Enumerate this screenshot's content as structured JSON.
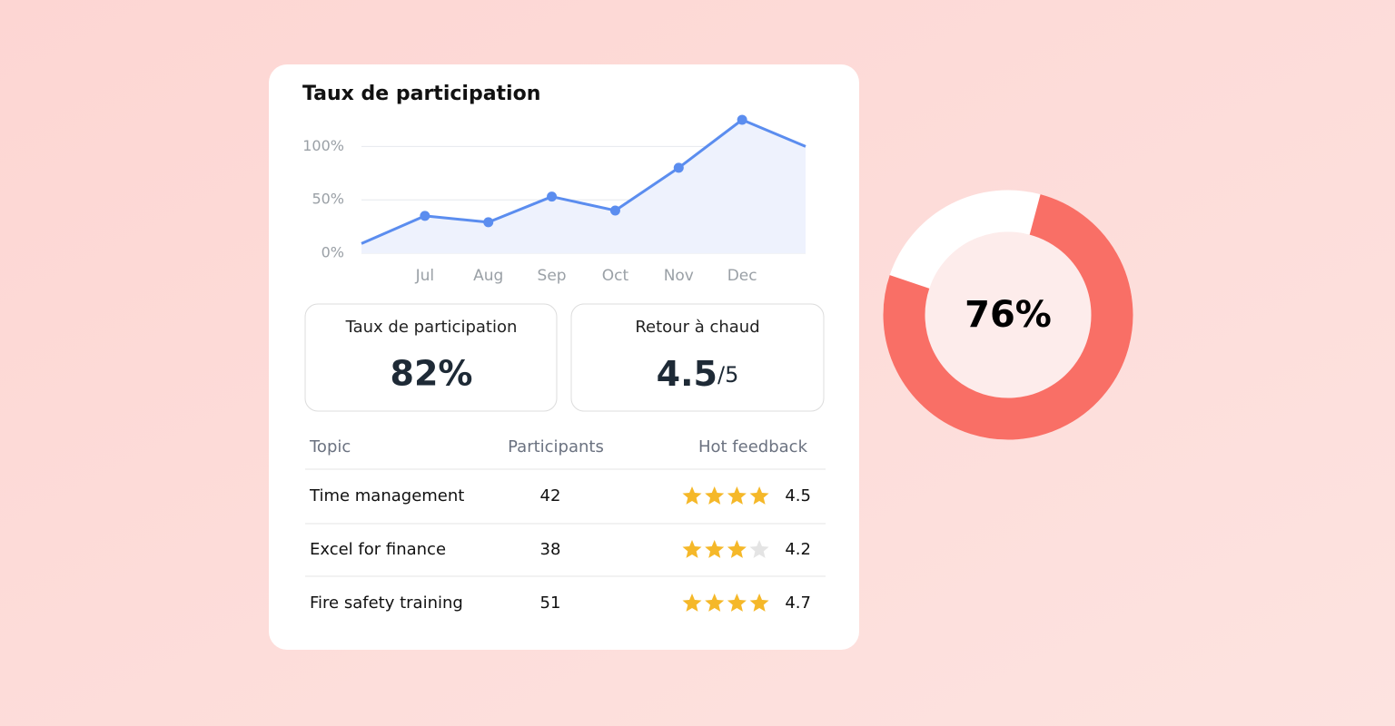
{
  "card": {
    "title": "Taux de participation",
    "chart_data": {
      "type": "line",
      "categories": [
        null,
        "Jul",
        "Aug",
        "Sep",
        "Oct",
        "Nov",
        "Dec",
        null
      ],
      "values": [
        9,
        35,
        29,
        53,
        40,
        80,
        125,
        100
      ],
      "color": "#5b8def",
      "ylim": [
        0,
        125
      ],
      "yticks": [
        {
          "value": 0,
          "label": "0%"
        },
        {
          "value": 50,
          "label": "50%"
        },
        {
          "value": 100,
          "label": "100%"
        }
      ],
      "grid": true
    },
    "stats": [
      {
        "label": "Taux de participation",
        "value": "82%"
      },
      {
        "label": "Retour à chaud",
        "value": "4.5",
        "suffix": "/5"
      }
    ],
    "table": {
      "headers": [
        "Topic",
        "Participants",
        "Hot feedback"
      ],
      "rows": [
        {
          "topic": "Time management",
          "participants": "42",
          "stars": 4,
          "rating": "4.5"
        },
        {
          "topic": "Excel for finance",
          "participants": "38",
          "stars": 3,
          "rating": "4.2"
        },
        {
          "topic": "Fire safety training",
          "participants": "51",
          "stars": 4,
          "rating": "4.7"
        }
      ]
    }
  },
  "donut": {
    "type": "pie",
    "value": 76,
    "value_label": "76%",
    "color": "#f96f66"
  }
}
